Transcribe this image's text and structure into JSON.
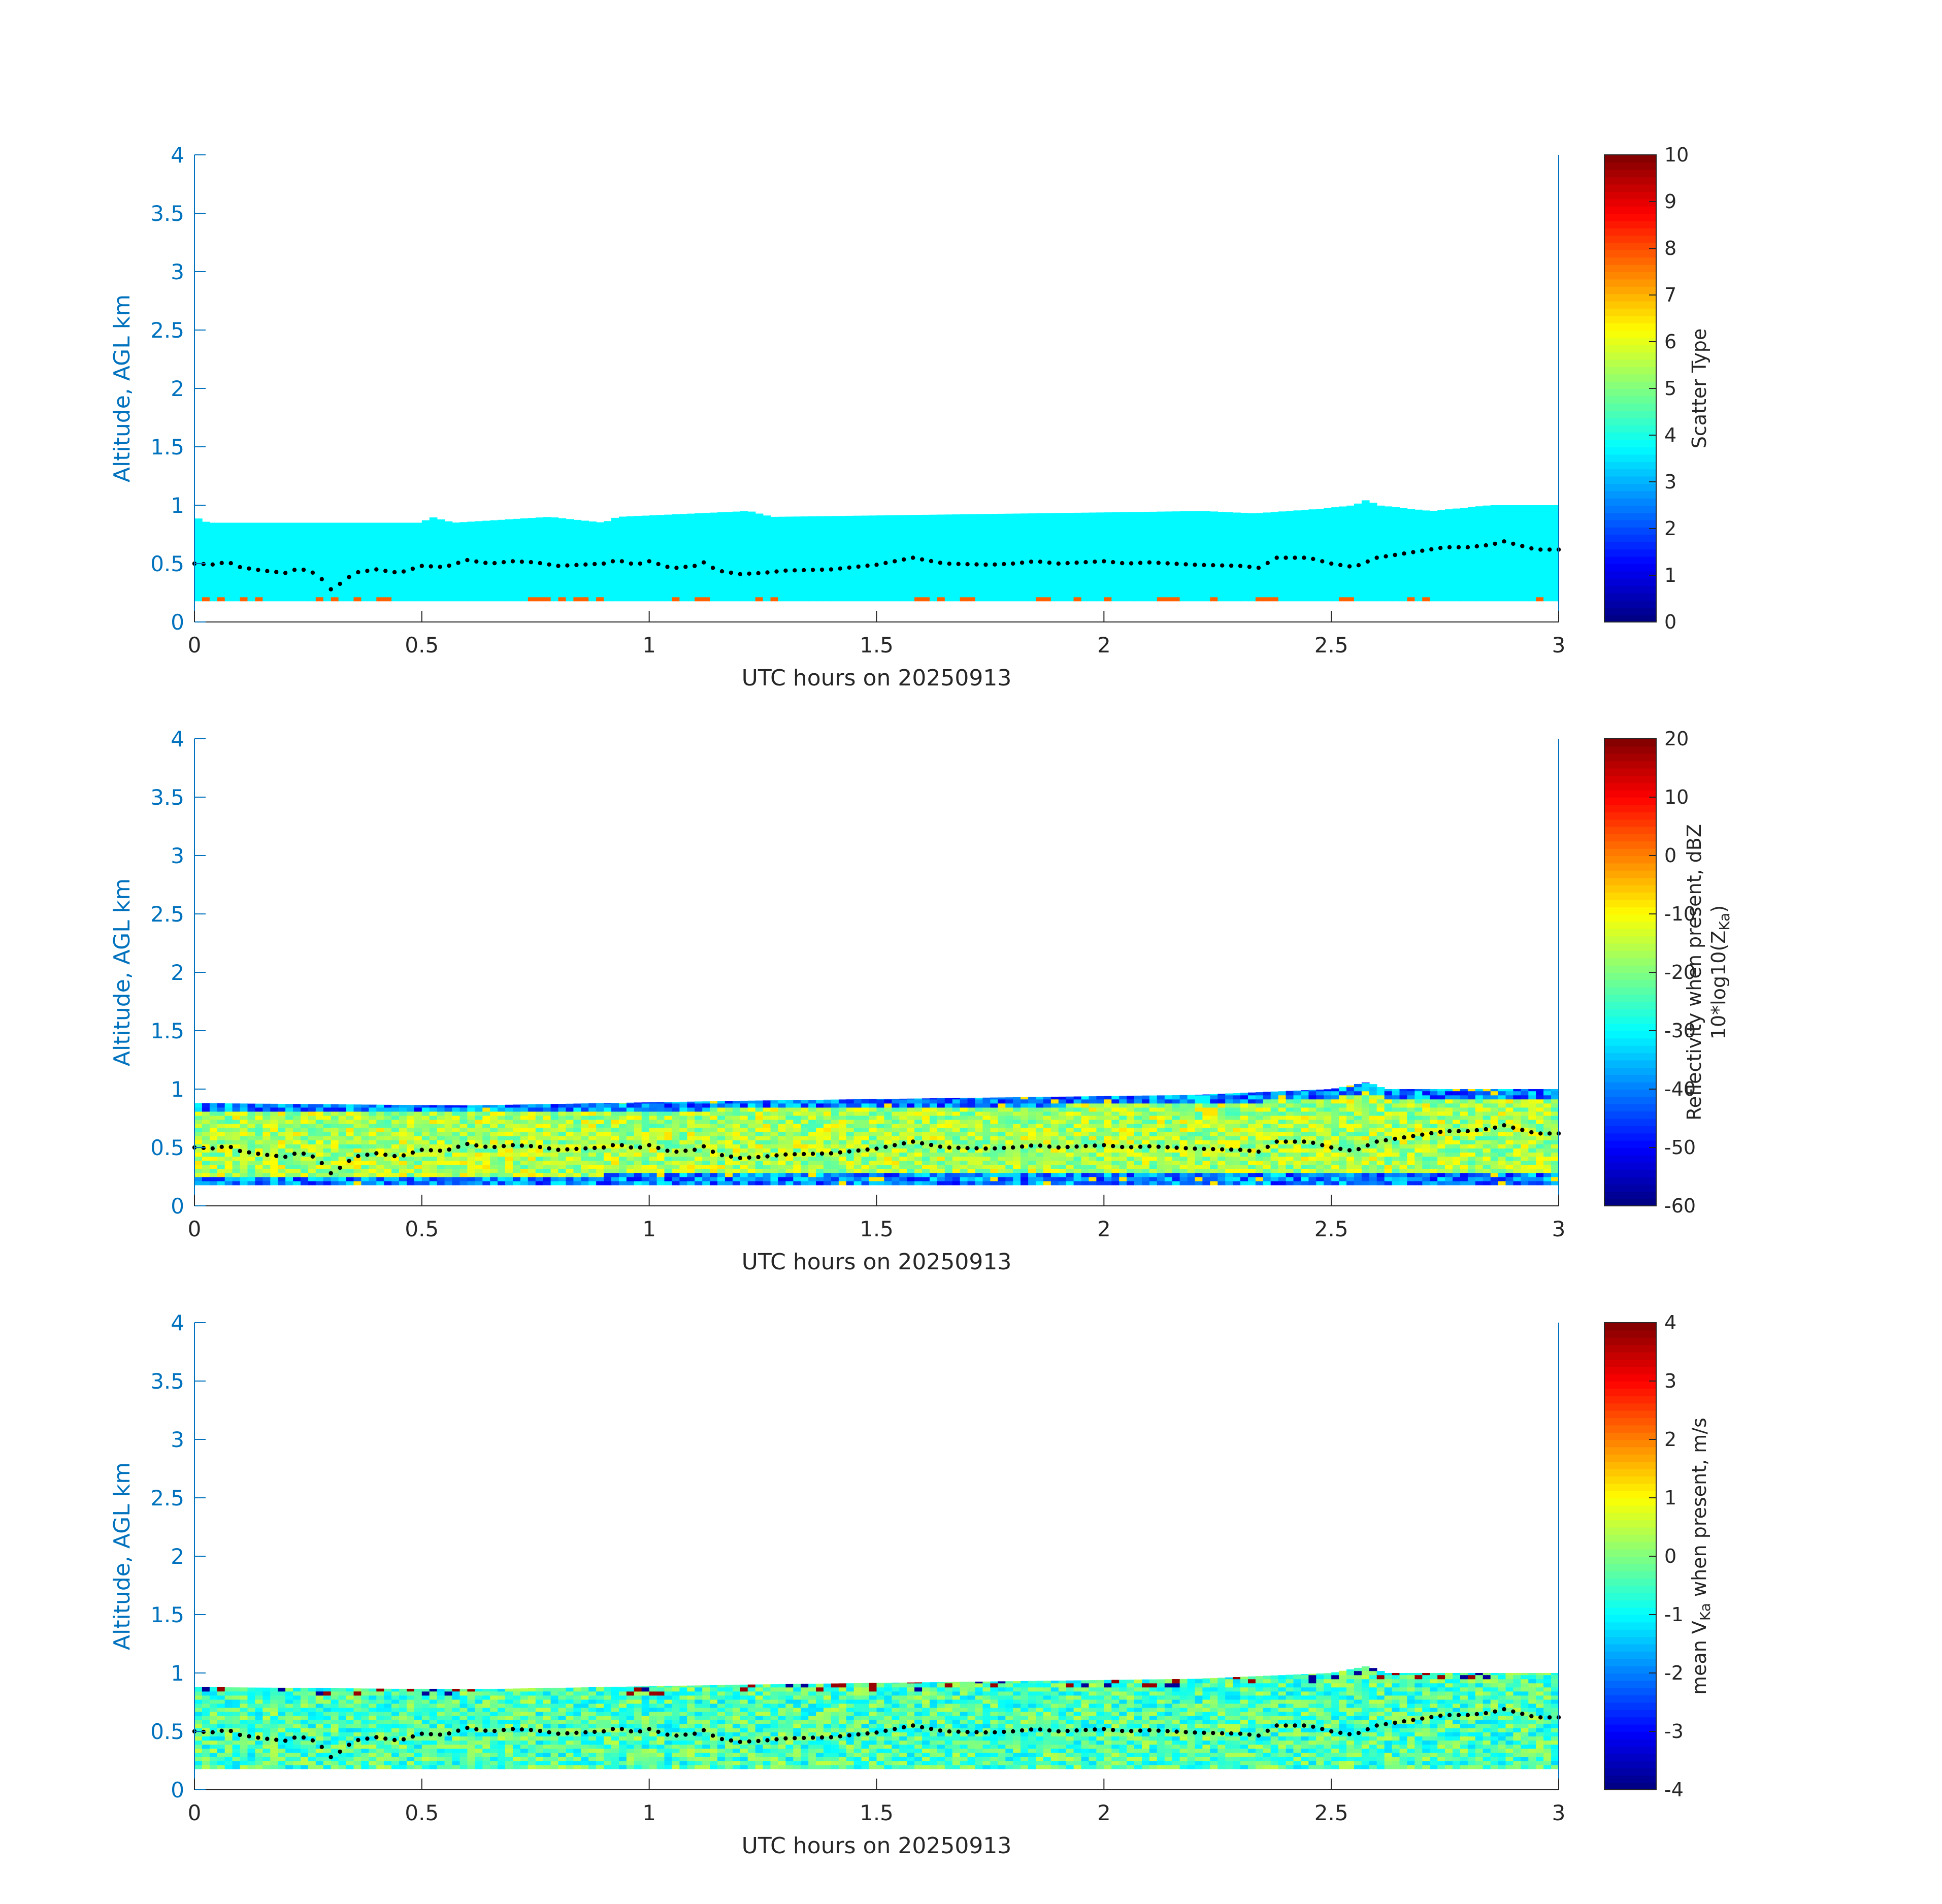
{
  "chart_data": [
    {
      "type": "heatmap",
      "xlabel": "UTC hours on 20250913",
      "ylabel": "Altitude, AGL km",
      "xlim": [
        0,
        3
      ],
      "ylim": [
        0,
        4
      ],
      "xticks": [
        "0",
        "0.5",
        "1",
        "1.5",
        "2",
        "2.5",
        "3"
      ],
      "yticks": [
        "0",
        "0.5",
        "1",
        "1.5",
        "2",
        "2.5",
        "3",
        "3.5",
        "4"
      ],
      "colorbar": {
        "label": "Scatter Type",
        "range": [
          0,
          10
        ],
        "ticks": [
          "0",
          "1",
          "2",
          "3",
          "4",
          "5",
          "6",
          "7",
          "8",
          "9",
          "10"
        ],
        "colormap": "jet"
      },
      "field": {
        "base_km": 0.18,
        "dominant_value": 3.7,
        "note_value_near_ground": 7.8,
        "top_km": [
          [
            0,
            0.9
          ],
          [
            0.03,
            0.85
          ],
          [
            0.5,
            0.85
          ],
          [
            0.52,
            0.9
          ],
          [
            0.57,
            0.85
          ],
          [
            0.78,
            0.9
          ],
          [
            0.9,
            0.85
          ],
          [
            0.93,
            0.9
          ],
          [
            1.22,
            0.95
          ],
          [
            1.27,
            0.9
          ],
          [
            2.22,
            0.95
          ],
          [
            2.33,
            0.93
          ],
          [
            2.48,
            0.97
          ],
          [
            2.55,
            1.0
          ],
          [
            2.58,
            1.05
          ],
          [
            2.6,
            1.0
          ],
          [
            2.72,
            0.95
          ],
          [
            2.85,
            1.0
          ],
          [
            3.0,
            1.0
          ]
        ]
      }
    },
    {
      "type": "heatmap",
      "xlabel": "UTC hours on 20250913",
      "ylabel": "Altitude, AGL km",
      "xlim": [
        0,
        3
      ],
      "ylim": [
        0,
        4
      ],
      "xticks": [
        "0",
        "0.5",
        "1",
        "1.5",
        "2",
        "2.5",
        "3"
      ],
      "yticks": [
        "0",
        "0.5",
        "1",
        "1.5",
        "2",
        "2.5",
        "3",
        "3.5",
        "4"
      ],
      "colorbar": {
        "label_line1": "Reflectivity when present, dBZ",
        "label_line2_prefix": "10*log10(Z",
        "label_line2_sub": "Ka",
        "label_line2_suffix": ")",
        "range": [
          -60,
          20
        ],
        "ticks": [
          "-60",
          "-50",
          "-40",
          "-30",
          "-20",
          "-10",
          "0",
          "10",
          "20"
        ],
        "colormap": "jet"
      },
      "field": {
        "base_km": 0.18,
        "core_dbz": -17,
        "edge_dbz": -50,
        "top_km": [
          [
            0,
            0.88
          ],
          [
            0.6,
            0.86
          ],
          [
            1.2,
            0.9
          ],
          [
            1.6,
            0.92
          ],
          [
            2.2,
            0.95
          ],
          [
            2.5,
            1.0
          ],
          [
            2.58,
            1.06
          ],
          [
            2.62,
            1.0
          ],
          [
            3.0,
            1.0
          ]
        ]
      }
    },
    {
      "type": "heatmap",
      "xlabel": "UTC hours on 20250913",
      "ylabel": "Altitude, AGL km",
      "xlim": [
        0,
        3
      ],
      "ylim": [
        0,
        4
      ],
      "xticks": [
        "0",
        "0.5",
        "1",
        "1.5",
        "2",
        "2.5",
        "3"
      ],
      "yticks": [
        "0",
        "0.5",
        "1",
        "1.5",
        "2",
        "2.5",
        "3",
        "3.5",
        "4"
      ],
      "colorbar": {
        "label_prefix": "mean V",
        "label_sub": "Ka",
        "label_suffix": " when present, m/s",
        "range": [
          -4,
          4
        ],
        "ticks": [
          "-4",
          "-3",
          "-2",
          "-1",
          "0",
          "1",
          "2",
          "3",
          "4"
        ],
        "colormap": "jet"
      },
      "field": {
        "base_km": 0.18,
        "mean_ms": -0.4,
        "top_km": [
          [
            0,
            0.88
          ],
          [
            0.6,
            0.86
          ],
          [
            1.2,
            0.9
          ],
          [
            1.6,
            0.92
          ],
          [
            2.2,
            0.95
          ],
          [
            2.5,
            1.0
          ],
          [
            2.58,
            1.06
          ],
          [
            2.62,
            1.0
          ],
          [
            3.0,
            1.0
          ]
        ]
      }
    }
  ],
  "overlay_dotted_line": {
    "color": "#000000",
    "points": [
      [
        0,
        0.5
      ],
      [
        0.05,
        0.49
      ],
      [
        0.07,
        0.52
      ],
      [
        0.1,
        0.47
      ],
      [
        0.15,
        0.44
      ],
      [
        0.2,
        0.42
      ],
      [
        0.23,
        0.46
      ],
      [
        0.27,
        0.41
      ],
      [
        0.3,
        0.28
      ],
      [
        0.33,
        0.35
      ],
      [
        0.35,
        0.42
      ],
      [
        0.4,
        0.45
      ],
      [
        0.45,
        0.42
      ],
      [
        0.5,
        0.48
      ],
      [
        0.55,
        0.47
      ],
      [
        0.6,
        0.53
      ],
      [
        0.65,
        0.5
      ],
      [
        0.7,
        0.52
      ],
      [
        0.75,
        0.51
      ],
      [
        0.8,
        0.48
      ],
      [
        0.85,
        0.49
      ],
      [
        0.9,
        0.5
      ],
      [
        0.93,
        0.53
      ],
      [
        0.97,
        0.49
      ],
      [
        1.0,
        0.52
      ],
      [
        1.05,
        0.46
      ],
      [
        1.1,
        0.48
      ],
      [
        1.12,
        0.51
      ],
      [
        1.15,
        0.44
      ],
      [
        1.2,
        0.41
      ],
      [
        1.25,
        0.42
      ],
      [
        1.3,
        0.44
      ],
      [
        1.4,
        0.45
      ],
      [
        1.5,
        0.49
      ],
      [
        1.58,
        0.55
      ],
      [
        1.65,
        0.5
      ],
      [
        1.75,
        0.49
      ],
      [
        1.8,
        0.5
      ],
      [
        1.85,
        0.52
      ],
      [
        1.9,
        0.5
      ],
      [
        2.0,
        0.52
      ],
      [
        2.05,
        0.5
      ],
      [
        2.1,
        0.51
      ],
      [
        2.2,
        0.49
      ],
      [
        2.3,
        0.48
      ],
      [
        2.35,
        0.46
      ],
      [
        2.37,
        0.55
      ],
      [
        2.45,
        0.55
      ],
      [
        2.5,
        0.5
      ],
      [
        2.55,
        0.47
      ],
      [
        2.6,
        0.55
      ],
      [
        2.65,
        0.58
      ],
      [
        2.7,
        0.61
      ],
      [
        2.75,
        0.64
      ],
      [
        2.8,
        0.64
      ],
      [
        2.85,
        0.66
      ],
      [
        2.88,
        0.69
      ],
      [
        2.92,
        0.65
      ],
      [
        2.95,
        0.62
      ],
      [
        3.0,
        0.62
      ]
    ]
  }
}
